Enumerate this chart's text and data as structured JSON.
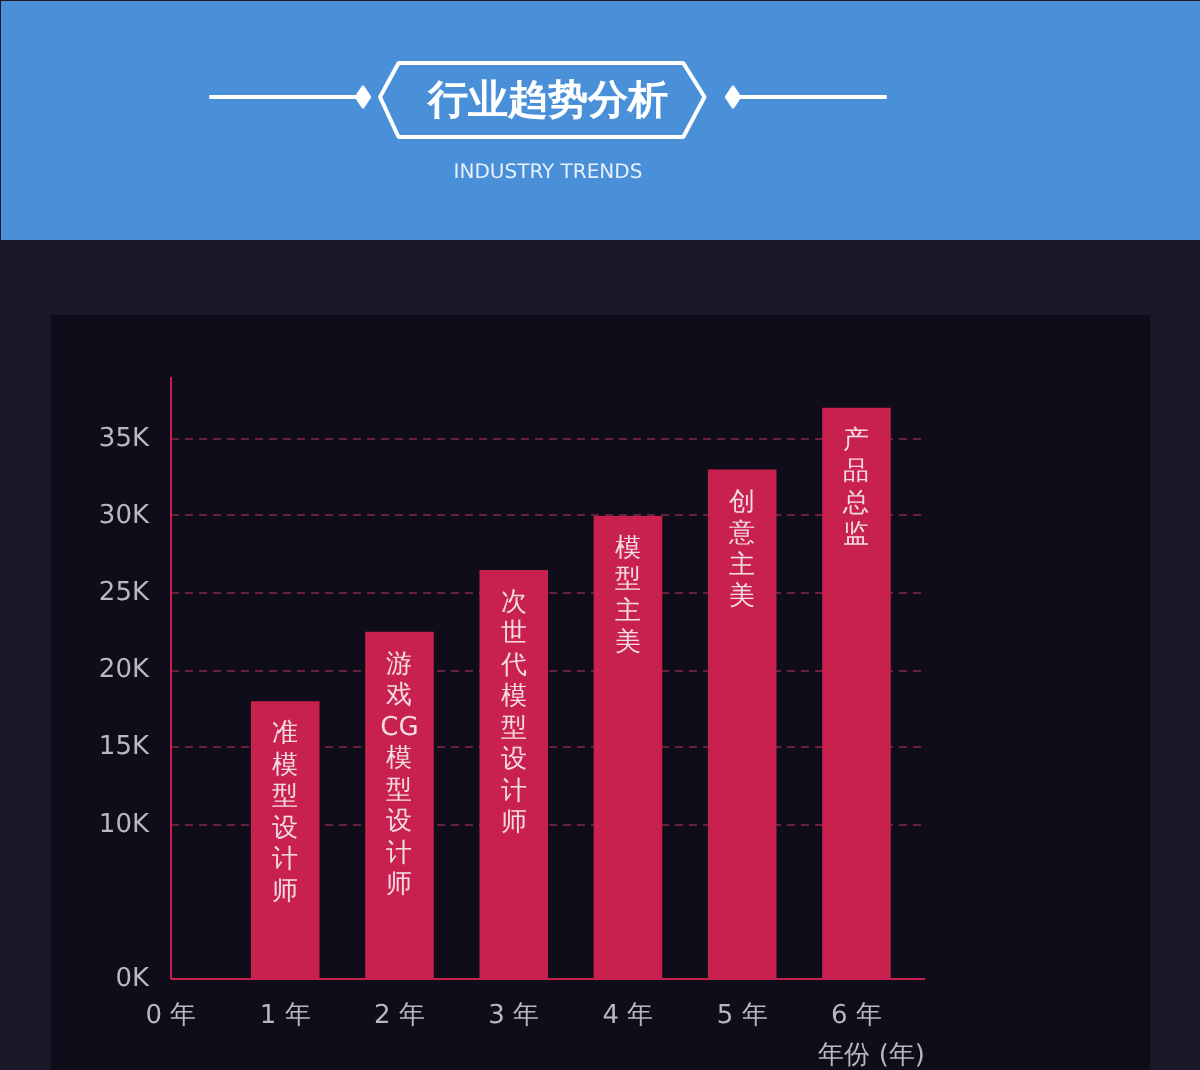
{
  "chart_data": {
    "type": "bar",
    "title": "行业趋势分析",
    "subtitle": "INDUSTRY TRENDS",
    "xlabel": "年份 (年)",
    "x": [
      1,
      2,
      3,
      4,
      5,
      6
    ],
    "values": [
      18000,
      22500,
      26500,
      30000,
      33000,
      37000
    ],
    "color": "#c8214f",
    "xlim": [
      0,
      6.6
    ],
    "xticks": [
      {
        "value": 0,
        "label": "0 年"
      },
      {
        "value": 1,
        "label": "1 年"
      },
      {
        "value": 2,
        "label": "2 年"
      },
      {
        "value": 3,
        "label": "3 年"
      },
      {
        "value": 4,
        "label": "4 年"
      },
      {
        "value": 5,
        "label": "5 年"
      },
      {
        "value": 6,
        "label": "6 年"
      }
    ],
    "ylim": [
      0,
      39000
    ],
    "yticks": [
      {
        "value": 0,
        "label": "0K"
      },
      {
        "value": 10000,
        "label": "10K"
      },
      {
        "value": 15000,
        "label": "15K"
      },
      {
        "value": 20000,
        "label": "20K"
      },
      {
        "value": 25000,
        "label": "25K"
      },
      {
        "value": 30000,
        "label": "30K"
      },
      {
        "value": 35000,
        "label": "35K"
      }
    ],
    "grid": "y",
    "annotations": [
      {
        "text": "准模型设计师",
        "x": 1,
        "y": 18000
      },
      {
        "text": "游戏CG模型设计师",
        "x": 2,
        "y": 22500
      },
      {
        "text": "次世代模型设计师",
        "x": 3,
        "y": 26500
      },
      {
        "text": "模型主美",
        "x": 4,
        "y": 30000
      },
      {
        "text": "创意主美",
        "x": 5,
        "y": 33000
      },
      {
        "text": "产品总监",
        "x": 6,
        "y": 37000
      }
    ]
  }
}
